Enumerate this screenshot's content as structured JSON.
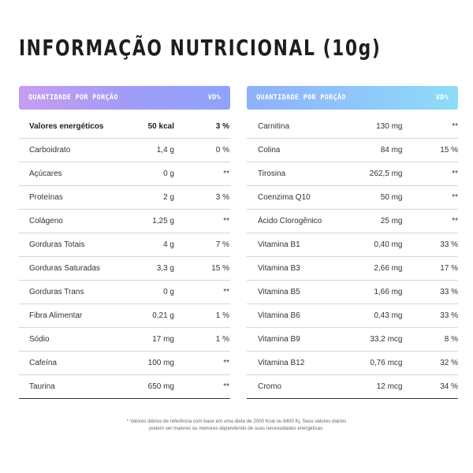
{
  "title": "INFORMAÇÃO NUTRICIONAL (10g)",
  "left_table": {
    "header": {
      "label": "QUANTIDADE POR PORÇÃO",
      "vd": "VD%"
    },
    "rows": [
      {
        "name": "Valores energéticos",
        "qty": "50 kcal",
        "vd": "3 %",
        "bold": true
      },
      {
        "name": "Carboidrato",
        "qty": "1,4 g",
        "vd": "0 %"
      },
      {
        "name": "Açúcares",
        "qty": "0 g",
        "vd": "**"
      },
      {
        "name": "Proteínas",
        "qty": "2 g",
        "vd": "3 %"
      },
      {
        "name": "Colágeno",
        "qty": "1,25 g",
        "vd": "**"
      },
      {
        "name": "Gorduras Totais",
        "qty": "4 g",
        "vd": "7 %"
      },
      {
        "name": "Gorduras Saturadas",
        "qty": "3,3 g",
        "vd": "15 %"
      },
      {
        "name": "Gorduras Trans",
        "qty": "0 g",
        "vd": "**"
      },
      {
        "name": "Fibra Alimentar",
        "qty": "0,21 g",
        "vd": "1 %"
      },
      {
        "name": "Sódio",
        "qty": "17 mg",
        "vd": "1 %"
      },
      {
        "name": "Cafeína",
        "qty": "100 mg",
        "vd": "**"
      },
      {
        "name": "Taurina",
        "qty": "650 mg",
        "vd": "**"
      }
    ]
  },
  "right_table": {
    "header": {
      "label": "QUANTIDADE POR PORÇÃO",
      "vd": "VD%"
    },
    "rows": [
      {
        "name": "Carnitina",
        "qty": "130 mg",
        "vd": "**"
      },
      {
        "name": "Colina",
        "qty": "84 mg",
        "vd": "15 %"
      },
      {
        "name": "Tirosina",
        "qty": "262,5 mg",
        "vd": "**"
      },
      {
        "name": "Coenzima Q10",
        "qty": "50 mg",
        "vd": "**"
      },
      {
        "name": "Ácido Clorogênico",
        "qty": "25 mg",
        "vd": "**"
      },
      {
        "name": "Vitamina B1",
        "qty": "0,40 mg",
        "vd": "33 %"
      },
      {
        "name": "Vitamina B3",
        "qty": "2,66 mg",
        "vd": "17 %"
      },
      {
        "name": "Vitamina B5",
        "qty": "1,66 mg",
        "vd": "33 %"
      },
      {
        "name": "Vitamina B6",
        "qty": "0,43 mg",
        "vd": "33 %"
      },
      {
        "name": "Vitamina B9",
        "qty": "33,2 mcg",
        "vd": "8 %"
      },
      {
        "name": "Vitamina B12",
        "qty": "0,76 mcg",
        "vd": "32 %"
      },
      {
        "name": "Cromo",
        "qty": "12 mcg",
        "vd": "34 %"
      }
    ]
  },
  "footnote": {
    "line1": "* Valores diários de referência com base em uma dieta de 2000 Kcal ou 8400 Kj. Seus valores diários",
    "line2": "podem ser maiores ou menores dependendo de suas necessidades energéticas."
  },
  "colors": {
    "left_header_gradient": [
      "#c79df0",
      "#8fa3fb"
    ],
    "right_header_gradient": [
      "#8fb0fb",
      "#8edcf7"
    ],
    "text": "#333333"
  }
}
